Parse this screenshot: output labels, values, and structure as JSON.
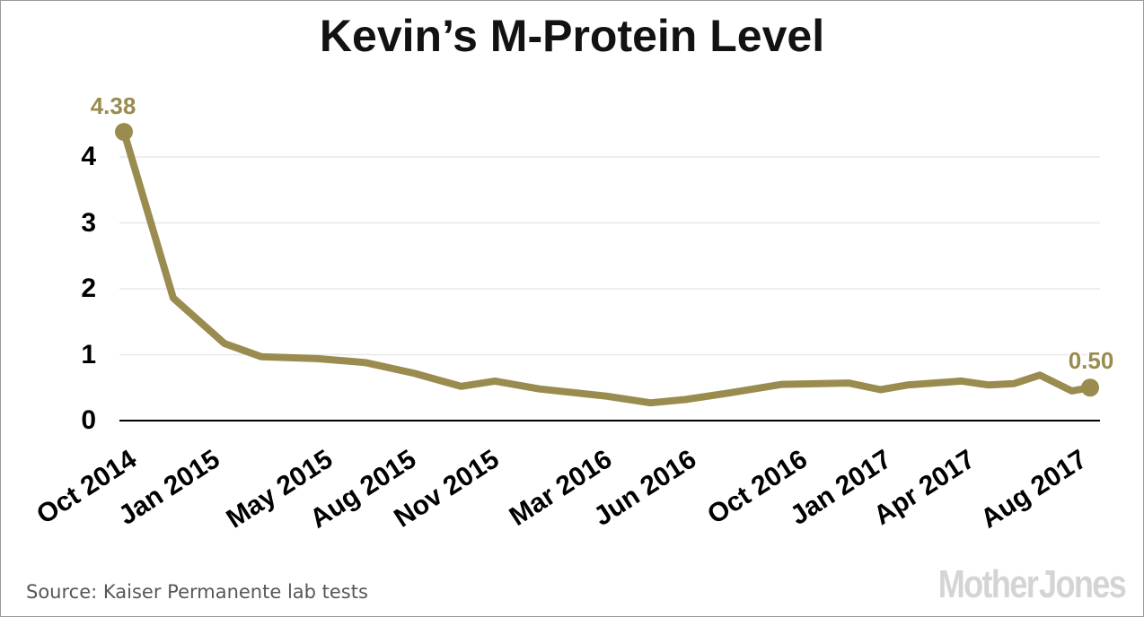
{
  "title": "Kevin’s M-Protein Level",
  "source_text": "Source: Kaiser Permanente lab tests",
  "branding": {
    "logo_text": "Mother Jones"
  },
  "annotations": {
    "first_point_label": "4.38",
    "last_point_label": "0.50"
  },
  "colors": {
    "line": "#9a8b4f",
    "value_labels": "#9a8b4f",
    "title": "#121212",
    "axis_labels": "#000000",
    "baseline": "#000000",
    "gridline": "#e8e8e8",
    "source_text": "#555759",
    "logo": "#d4d4d4",
    "border": "#999999",
    "background": "#ffffff"
  },
  "chart_data": {
    "type": "line",
    "title": "Kevin’s M-Protein Level",
    "xlabel": "",
    "ylabel": "",
    "x_tick_labels": [
      "Oct 2014",
      "Jan 2015",
      "May 2015",
      "Aug 2015",
      "Nov 2015",
      "Mar 2016",
      "Jun 2016",
      "Oct 2016",
      "Jan 2017",
      "Apr 2017",
      "Aug 2017"
    ],
    "x_tick_positions": [
      0.0,
      0.086,
      0.203,
      0.289,
      0.375,
      0.492,
      0.579,
      0.694,
      0.781,
      0.868,
      0.984
    ],
    "x_unit": "fraction of x-axis span (Oct 2014 to mid-Sep 2017)",
    "y_ticks": [
      0,
      1,
      2,
      3,
      4
    ],
    "ylim": [
      0,
      4.6
    ],
    "grid": "horizontal",
    "legend": "none",
    "line_color": "#9a8b4f",
    "line_width": 8,
    "markers": "first and last points only",
    "marker_radius": 10,
    "points": [
      {
        "x": 0.0,
        "v": 4.38
      },
      {
        "x": 0.051,
        "v": 1.86
      },
      {
        "x": 0.104,
        "v": 1.17
      },
      {
        "x": 0.142,
        "v": 0.97
      },
      {
        "x": 0.2,
        "v": 0.94
      },
      {
        "x": 0.25,
        "v": 0.88
      },
      {
        "x": 0.3,
        "v": 0.72
      },
      {
        "x": 0.349,
        "v": 0.52
      },
      {
        "x": 0.384,
        "v": 0.6
      },
      {
        "x": 0.43,
        "v": 0.48
      },
      {
        "x": 0.5,
        "v": 0.37
      },
      {
        "x": 0.545,
        "v": 0.27
      },
      {
        "x": 0.581,
        "v": 0.32
      },
      {
        "x": 0.627,
        "v": 0.42
      },
      {
        "x": 0.681,
        "v": 0.55
      },
      {
        "x": 0.75,
        "v": 0.57
      },
      {
        "x": 0.783,
        "v": 0.47
      },
      {
        "x": 0.811,
        "v": 0.54
      },
      {
        "x": 0.867,
        "v": 0.6
      },
      {
        "x": 0.895,
        "v": 0.54
      },
      {
        "x": 0.921,
        "v": 0.56
      },
      {
        "x": 0.948,
        "v": 0.69
      },
      {
        "x": 0.981,
        "v": 0.45
      },
      {
        "x": 1.0,
        "v": 0.5
      }
    ],
    "endpoint_value_labels": {
      "first": "4.38",
      "last": "0.50"
    }
  }
}
